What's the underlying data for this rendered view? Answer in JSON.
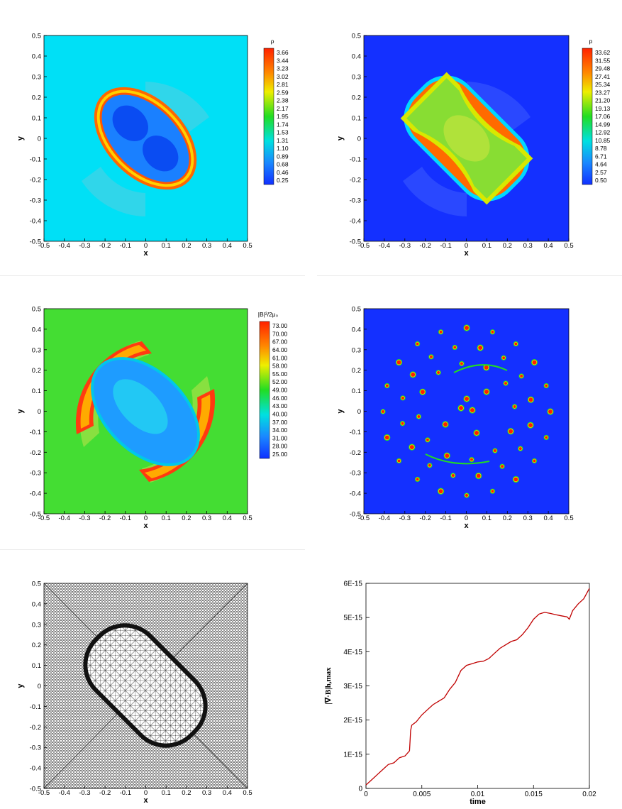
{
  "panels": [
    {
      "id": "rho",
      "kind": "contour",
      "xlabel": "x",
      "ylabel": "y",
      "xticks": [
        "-0.5",
        "-0.4",
        "-0.3",
        "-0.2",
        "-0.1",
        "0",
        "0.1",
        "0.2",
        "0.3",
        "0.4",
        "0.5"
      ],
      "yticks": [
        "0.5",
        "0.4",
        "0.3",
        "0.2",
        "0.1",
        "0",
        "-0.1",
        "-0.2",
        "-0.3",
        "-0.4",
        "-0.5"
      ],
      "colorbar": {
        "title": "ρ",
        "labels": [
          "3.66",
          "3.44",
          "3.23",
          "3.02",
          "2.81",
          "2.59",
          "2.38",
          "2.17",
          "1.95",
          "1.74",
          "1.53",
          "1.31",
          "1.10",
          "0.89",
          "0.68",
          "0.46",
          "0.25"
        ]
      }
    },
    {
      "id": "p",
      "kind": "contour",
      "xlabel": "x",
      "ylabel": "y",
      "xticks": [
        "-0.5",
        "-0.4",
        "-0.3",
        "-0.2",
        "-0.1",
        "0",
        "0.1",
        "0.2",
        "0.3",
        "0.4",
        "0.5"
      ],
      "yticks": [
        "0.5",
        "0.4",
        "0.3",
        "0.2",
        "0.1",
        "0",
        "-0.1",
        "-0.2",
        "-0.3",
        "-0.4",
        "-0.5"
      ],
      "colorbar": {
        "title": "p",
        "labels": [
          "33.62",
          "31.55",
          "29.48",
          "27.41",
          "25.34",
          "23.27",
          "21.20",
          "19.13",
          "17.06",
          "14.99",
          "12.92",
          "10.85",
          "8.78",
          "6.71",
          "4.64",
          "2.57",
          "0.50"
        ]
      }
    },
    {
      "id": "magp",
      "kind": "contour",
      "xlabel": "x",
      "ylabel": "y",
      "xticks": [
        "-0.5",
        "-0.4",
        "-0.3",
        "-0.2",
        "-0.1",
        "0",
        "0.1",
        "0.2",
        "0.3",
        "0.4",
        "0.5"
      ],
      "yticks": [
        "0.5",
        "0.4",
        "0.3",
        "0.2",
        "0.1",
        "0",
        "-0.1",
        "-0.2",
        "-0.3",
        "-0.4",
        "-0.5"
      ],
      "colorbar": {
        "title": "|B|²/2μ₀",
        "labels": [
          "73.00",
          "70.00",
          "67.00",
          "64.00",
          "61.00",
          "58.00",
          "55.00",
          "52.00",
          "49.00",
          "46.00",
          "43.00",
          "40.00",
          "37.00",
          "34.00",
          "31.00",
          "28.00",
          "25.00"
        ]
      }
    },
    {
      "id": "divb",
      "kind": "contour",
      "xlabel": "x",
      "ylabel": "y",
      "xticks": [
        "-0.5",
        "-0.4",
        "-0.3",
        "-0.2",
        "-0.1",
        "0",
        "0.1",
        "0.2",
        "0.3",
        "0.4",
        "0.5"
      ],
      "yticks": [
        "0.5",
        "0.4",
        "0.3",
        "0.2",
        "0.1",
        "0",
        "-0.1",
        "-0.2",
        "-0.3",
        "-0.4",
        "-0.5"
      ]
    },
    {
      "id": "mesh",
      "kind": "mesh",
      "xlabel": "x",
      "ylabel": "y",
      "xticks": [
        "-0.5",
        "-0.4",
        "-0.3",
        "-0.2",
        "-0.1",
        "0",
        "0.1",
        "0.2",
        "0.3",
        "0.4",
        "0.5"
      ],
      "yticks": [
        "0.5",
        "0.4",
        "0.3",
        "0.2",
        "0.1",
        "0",
        "-0.1",
        "-0.2",
        "-0.3",
        "-0.4",
        "-0.5"
      ]
    }
  ],
  "chart_data": {
    "type": "line",
    "xlabel": "time",
    "ylabel": "|∇·B|h,max",
    "xlim": [
      0,
      0.02
    ],
    "ylim": [
      0,
      6e-15
    ],
    "xticks": [
      "0",
      "0.005",
      "0.01",
      "0.015",
      "0.02"
    ],
    "yticks": [
      "6E-15",
      "5E-15",
      "4E-15",
      "3E-15",
      "2E-15",
      "1E-15",
      "0"
    ],
    "color": "#c00000",
    "series": [
      {
        "x": [
          0,
          0.0005,
          0.001,
          0.0015,
          0.002,
          0.0025,
          0.003,
          0.0035,
          0.0039,
          0.004,
          0.0041,
          0.0045,
          0.005,
          0.0055,
          0.006,
          0.0065,
          0.007,
          0.0075,
          0.008,
          0.0085,
          0.009,
          0.0095,
          0.01,
          0.0105,
          0.011,
          0.0115,
          0.012,
          0.0125,
          0.013,
          0.0135,
          0.014,
          0.0145,
          0.015,
          0.0155,
          0.016,
          0.0165,
          0.017,
          0.0175,
          0.018,
          0.0182,
          0.0185,
          0.019,
          0.0195,
          0.02
        ],
        "y": [
          1e-16,
          2.5e-16,
          4e-16,
          5.5e-16,
          7e-16,
          7.5e-16,
          9e-16,
          9.5e-16,
          1.1e-15,
          1.7e-15,
          1.85e-15,
          1.95e-15,
          2.15e-15,
          2.3e-15,
          2.45e-15,
          2.55e-15,
          2.65e-15,
          2.9e-15,
          3.1e-15,
          3.45e-15,
          3.6e-15,
          3.65e-15,
          3.7e-15,
          3.72e-15,
          3.8e-15,
          3.95e-15,
          4.1e-15,
          4.2e-15,
          4.3e-15,
          4.35e-15,
          4.5e-15,
          4.7e-15,
          4.95e-15,
          5.1e-15,
          5.15e-15,
          5.12e-15,
          5.08e-15,
          5.05e-15,
          5.02e-15,
          4.95e-15,
          5.2e-15,
          5.4e-15,
          5.55e-15,
          5.85e-15
        ]
      }
    ]
  }
}
